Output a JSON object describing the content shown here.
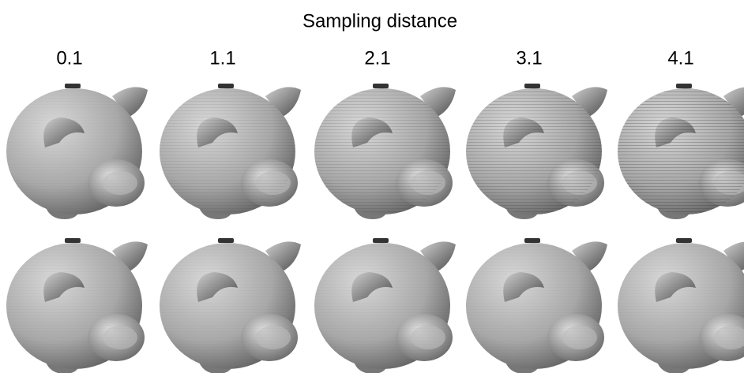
{
  "figure": {
    "title": "Sampling distance",
    "columns": [
      "0.1",
      "1.1",
      "2.1",
      "3.1",
      "4.1"
    ]
  }
}
